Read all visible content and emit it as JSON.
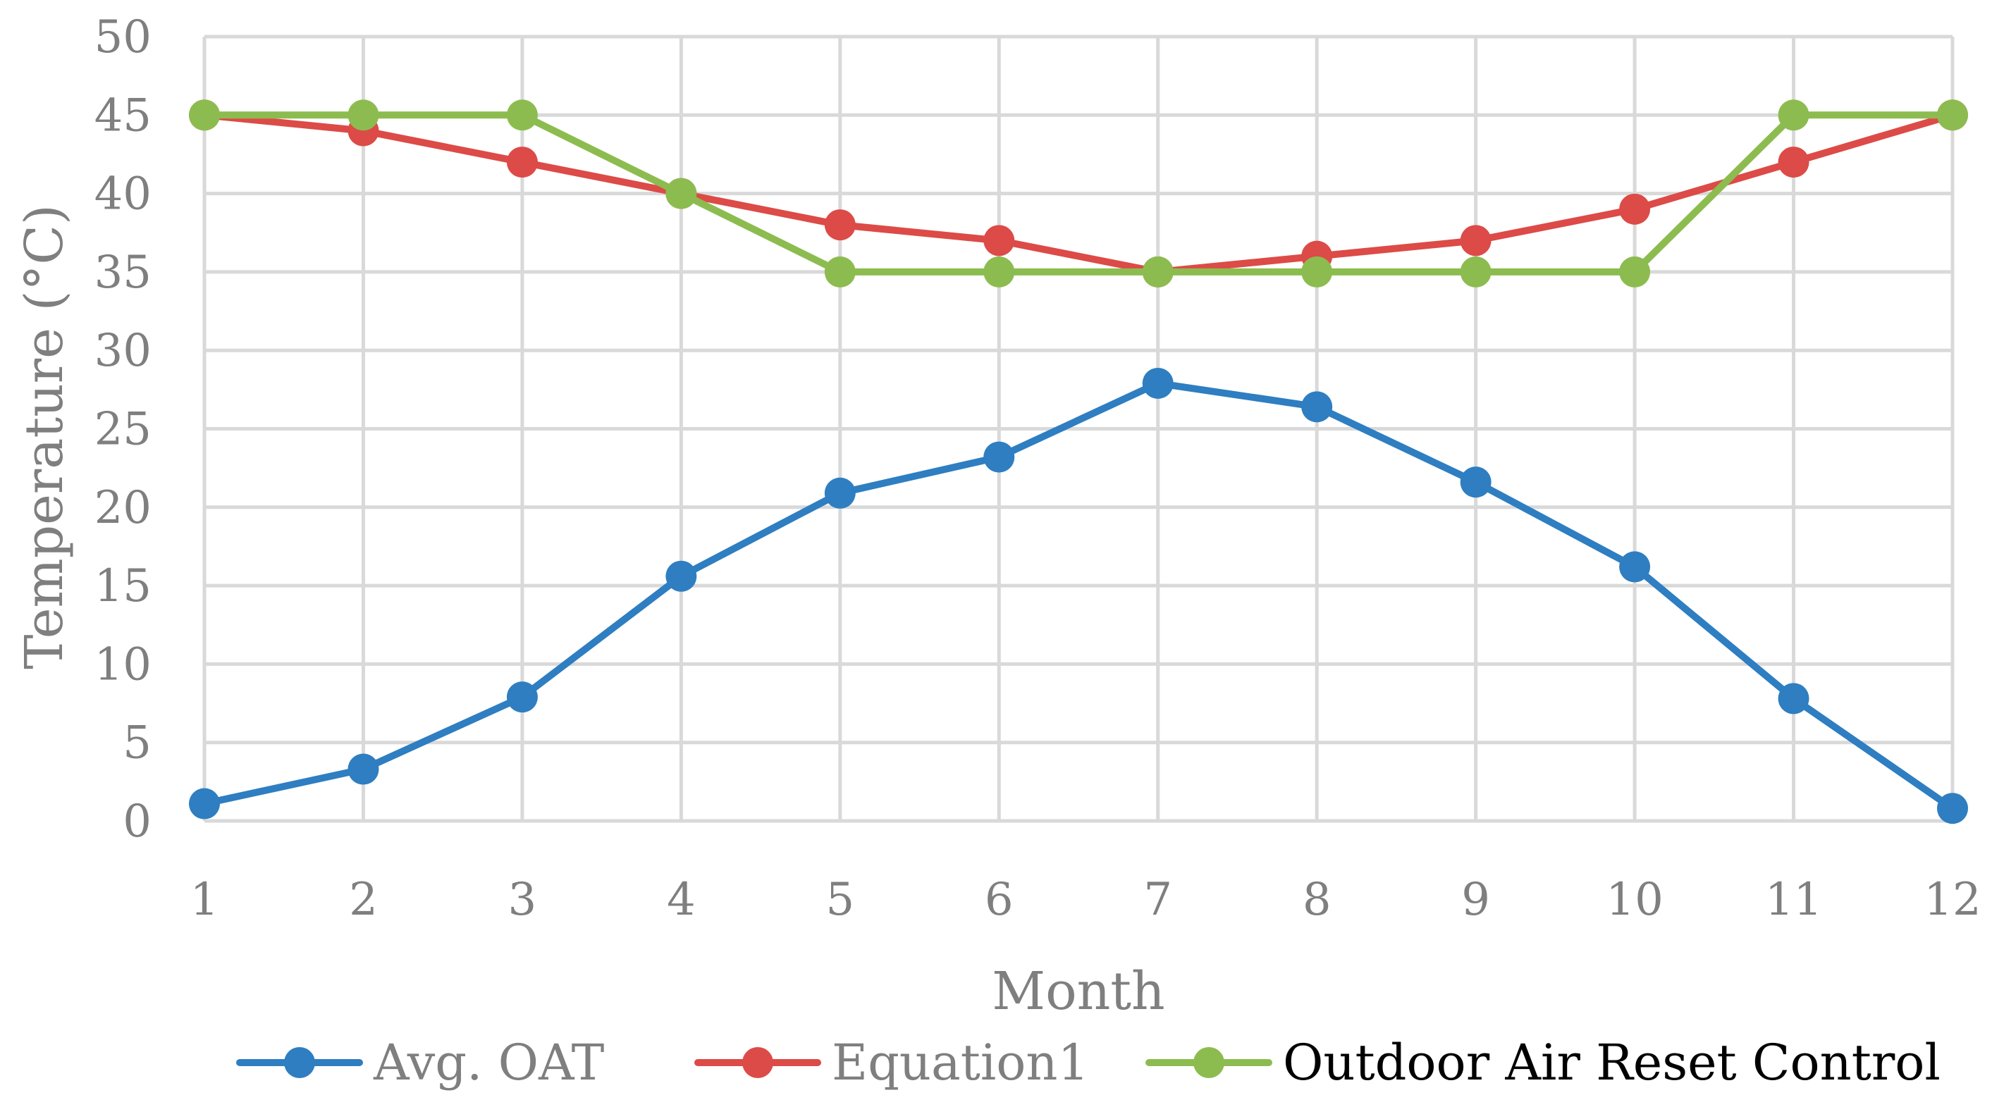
{
  "chart_data": {
    "type": "line",
    "title": "",
    "xlabel": "Month",
    "ylabel": "Temperature (°C)",
    "categories": [
      "1",
      "2",
      "3",
      "4",
      "5",
      "6",
      "7",
      "8",
      "9",
      "10",
      "11",
      "12"
    ],
    "ylim": [
      0,
      50
    ],
    "yticks": [
      "0",
      "5",
      "10",
      "15",
      "20",
      "25",
      "30",
      "35",
      "40",
      "45",
      "50"
    ],
    "grid": true,
    "legend_position": "bottom",
    "series": [
      {
        "name": "Avg. OAT",
        "color": "#2e7ec1",
        "label_color": "#7f7f7f",
        "values": [
          1.1,
          3.3,
          7.9,
          15.6,
          20.9,
          23.2,
          27.9,
          26.4,
          21.6,
          16.2,
          7.8,
          0.8
        ]
      },
      {
        "name": "Equation1",
        "color": "#dc4b47",
        "label_color": "#7f7f7f",
        "values": [
          45,
          44,
          42,
          40,
          38,
          37,
          35,
          36,
          37,
          39,
          42,
          45
        ]
      },
      {
        "name": "Outdoor Air Reset Control",
        "color": "#8cbc4f",
        "label_color": "#000000",
        "values": [
          45,
          45,
          45,
          40,
          35,
          35,
          35,
          35,
          35,
          35,
          45,
          45
        ]
      }
    ]
  }
}
